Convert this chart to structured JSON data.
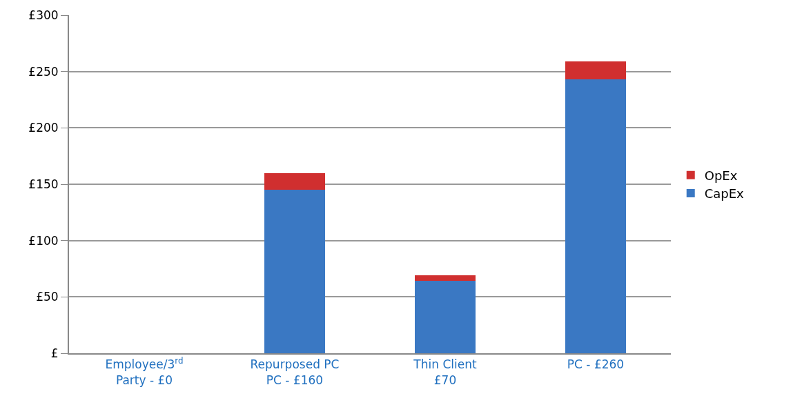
{
  "chart_data": {
    "type": "bar",
    "stacked": true,
    "categories": [
      "Employee/3$^{rd}$\nParty - £0",
      "Repurposed PC\nPC - £160",
      "Thin Client\n£70",
      "PC - £260"
    ],
    "series": [
      {
        "name": "CapEx",
        "color": "#3a78c3",
        "values": [
          0,
          145,
          64,
          243
        ]
      },
      {
        "name": "OpEx",
        "color": "#d02f2f",
        "values": [
          0,
          15,
          5,
          16
        ]
      }
    ],
    "ylim": [
      0,
      300
    ],
    "yticks": [
      {
        "value": 0,
        "label": "£"
      },
      {
        "value": 50,
        "label": "£50"
      },
      {
        "value": 100,
        "label": "£100"
      },
      {
        "value": 150,
        "label": "£150"
      },
      {
        "value": 200,
        "label": "£200"
      },
      {
        "value": 250,
        "label": "£250"
      },
      {
        "value": 300,
        "label": "£300"
      }
    ],
    "grid": "y",
    "legend": "right"
  }
}
